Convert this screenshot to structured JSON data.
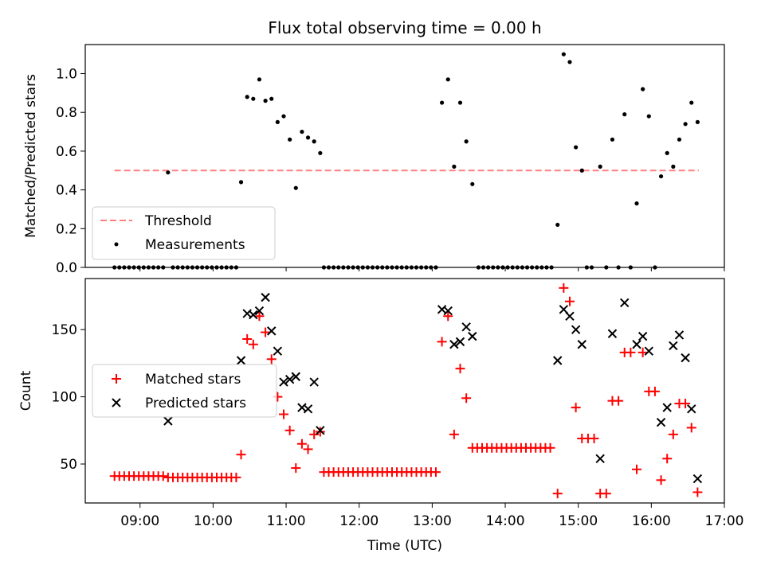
{
  "title": "Flux total observing time = 0.00 h",
  "chart_data": [
    {
      "type": "scatter",
      "ylabel": "Matched/Predicted stars",
      "xlim": [
        "08:15",
        "17:00"
      ],
      "ylim": [
        0,
        1.15
      ],
      "yticks": [
        0.0,
        0.2,
        0.4,
        0.6,
        0.8,
        1.0
      ],
      "ytick_labels": [
        "0.0",
        "0.2",
        "0.4",
        "0.6",
        "0.8",
        "1.0"
      ],
      "legend_position": "lower-left",
      "threshold": {
        "name": "Threshold",
        "value": 0.5,
        "x_range": [
          "08:39",
          "16:39"
        ],
        "color": "#ff7f7f",
        "style": "dashed"
      },
      "series": [
        {
          "name": "Measurements",
          "marker": "dot",
          "color": "#000000",
          "points": [
            [
              "08:39",
              0
            ],
            [
              "08:43",
              0
            ],
            [
              "08:47",
              0
            ],
            [
              "08:51",
              0
            ],
            [
              "08:55",
              0
            ],
            [
              "08:59",
              0
            ],
            [
              "09:03",
              0
            ],
            [
              "09:07",
              0
            ],
            [
              "09:11",
              0
            ],
            [
              "09:15",
              0
            ],
            [
              "09:19",
              0
            ],
            [
              "09:23",
              0.49
            ],
            [
              "09:27",
              0
            ],
            [
              "09:31",
              0
            ],
            [
              "09:35",
              0
            ],
            [
              "09:39",
              0
            ],
            [
              "09:43",
              0
            ],
            [
              "09:47",
              0
            ],
            [
              "09:51",
              0
            ],
            [
              "09:55",
              0
            ],
            [
              "09:59",
              0
            ],
            [
              "10:03",
              0
            ],
            [
              "10:07",
              0
            ],
            [
              "10:11",
              0
            ],
            [
              "10:15",
              0
            ],
            [
              "10:19",
              0
            ],
            [
              "10:23",
              0.44
            ],
            [
              "10:28",
              0.88
            ],
            [
              "10:33",
              0.87
            ],
            [
              "10:38",
              0.97
            ],
            [
              "10:43",
              0.86
            ],
            [
              "10:48",
              0.87
            ],
            [
              "10:53",
              0.75
            ],
            [
              "10:58",
              0.78
            ],
            [
              "11:03",
              0.66
            ],
            [
              "11:08",
              0.41
            ],
            [
              "11:13",
              0.7
            ],
            [
              "11:18",
              0.67
            ],
            [
              "11:23",
              0.65
            ],
            [
              "11:28",
              0.59
            ],
            [
              "11:31",
              0
            ],
            [
              "11:35",
              0
            ],
            [
              "11:39",
              0
            ],
            [
              "11:43",
              0
            ],
            [
              "11:47",
              0
            ],
            [
              "11:51",
              0
            ],
            [
              "11:55",
              0
            ],
            [
              "11:59",
              0
            ],
            [
              "12:03",
              0
            ],
            [
              "12:07",
              0
            ],
            [
              "12:11",
              0
            ],
            [
              "12:15",
              0
            ],
            [
              "12:19",
              0
            ],
            [
              "12:23",
              0
            ],
            [
              "12:27",
              0
            ],
            [
              "12:31",
              0
            ],
            [
              "12:35",
              0
            ],
            [
              "12:39",
              0
            ],
            [
              "12:43",
              0
            ],
            [
              "12:47",
              0
            ],
            [
              "12:51",
              0
            ],
            [
              "12:55",
              0
            ],
            [
              "12:59",
              0
            ],
            [
              "13:03",
              0
            ],
            [
              "13:08",
              0.85
            ],
            [
              "13:13",
              0.97
            ],
            [
              "13:18",
              0.52
            ],
            [
              "13:23",
              0.85
            ],
            [
              "13:28",
              0.65
            ],
            [
              "13:33",
              0.43
            ],
            [
              "13:38",
              0
            ],
            [
              "13:42",
              0
            ],
            [
              "13:46",
              0
            ],
            [
              "13:50",
              0
            ],
            [
              "13:54",
              0
            ],
            [
              "13:58",
              0
            ],
            [
              "14:02",
              0
            ],
            [
              "14:06",
              0
            ],
            [
              "14:10",
              0
            ],
            [
              "14:14",
              0
            ],
            [
              "14:18",
              0
            ],
            [
              "14:22",
              0
            ],
            [
              "14:26",
              0
            ],
            [
              "14:30",
              0
            ],
            [
              "14:34",
              0
            ],
            [
              "14:38",
              0
            ],
            [
              "14:43",
              0.22
            ],
            [
              "14:48",
              1.1
            ],
            [
              "14:53",
              1.06
            ],
            [
              "14:58",
              0.62
            ],
            [
              "15:03",
              0.5
            ],
            [
              "15:07",
              0
            ],
            [
              "15:11",
              0
            ],
            [
              "15:18",
              0.52
            ],
            [
              "15:23",
              0
            ],
            [
              "15:28",
              0.66
            ],
            [
              "15:33",
              0
            ],
            [
              "15:38",
              0.79
            ],
            [
              "15:43",
              0
            ],
            [
              "15:48",
              0.33
            ],
            [
              "15:53",
              0.92
            ],
            [
              "15:58",
              0.78
            ],
            [
              "16:03",
              0
            ],
            [
              "16:08",
              0.47
            ],
            [
              "16:13",
              0.59
            ],
            [
              "16:18",
              0.52
            ],
            [
              "16:23",
              0.66
            ],
            [
              "16:28",
              0.74
            ],
            [
              "16:33",
              0.85
            ],
            [
              "16:38",
              0.75
            ]
          ]
        }
      ]
    },
    {
      "type": "scatter",
      "xlabel": "Time (UTC)",
      "ylabel": "Count",
      "xlim": [
        "08:15",
        "17:00"
      ],
      "ylim": [
        21,
        188
      ],
      "yticks": [
        50,
        100,
        150
      ],
      "ytick_labels": [
        "50",
        "100",
        "150"
      ],
      "xticks": [
        "09:00",
        "10:00",
        "11:00",
        "12:00",
        "13:00",
        "14:00",
        "15:00",
        "16:00",
        "17:00"
      ],
      "legend_position": "center-left",
      "series": [
        {
          "name": "Matched stars",
          "marker": "plus",
          "color": "#ff0000",
          "points": [
            [
              "08:39",
              41
            ],
            [
              "08:43",
              41
            ],
            [
              "08:47",
              41
            ],
            [
              "08:51",
              41
            ],
            [
              "08:55",
              41
            ],
            [
              "08:59",
              41
            ],
            [
              "09:03",
              41
            ],
            [
              "09:07",
              41
            ],
            [
              "09:11",
              41
            ],
            [
              "09:15",
              41
            ],
            [
              "09:19",
              41
            ],
            [
              "09:23",
              40
            ],
            [
              "09:27",
              40
            ],
            [
              "09:31",
              40
            ],
            [
              "09:35",
              40
            ],
            [
              "09:39",
              40
            ],
            [
              "09:43",
              40
            ],
            [
              "09:47",
              40
            ],
            [
              "09:51",
              40
            ],
            [
              "09:55",
              40
            ],
            [
              "09:59",
              40
            ],
            [
              "10:03",
              40
            ],
            [
              "10:07",
              40
            ],
            [
              "10:11",
              40
            ],
            [
              "10:15",
              40
            ],
            [
              "10:19",
              40
            ],
            [
              "10:23",
              57
            ],
            [
              "10:28",
              143
            ],
            [
              "10:33",
              139
            ],
            [
              "10:38",
              160
            ],
            [
              "10:43",
              148
            ],
            [
              "10:48",
              128
            ],
            [
              "10:53",
              100
            ],
            [
              "10:58",
              87
            ],
            [
              "11:03",
              75
            ],
            [
              "11:08",
              47
            ],
            [
              "11:13",
              65
            ],
            [
              "11:18",
              61
            ],
            [
              "11:23",
              72
            ],
            [
              "11:28",
              74
            ],
            [
              "11:31",
              44
            ],
            [
              "11:35",
              44
            ],
            [
              "11:39",
              44
            ],
            [
              "11:43",
              44
            ],
            [
              "11:47",
              44
            ],
            [
              "11:51",
              44
            ],
            [
              "11:55",
              44
            ],
            [
              "11:59",
              44
            ],
            [
              "12:03",
              44
            ],
            [
              "12:07",
              44
            ],
            [
              "12:11",
              44
            ],
            [
              "12:15",
              44
            ],
            [
              "12:19",
              44
            ],
            [
              "12:23",
              44
            ],
            [
              "12:27",
              44
            ],
            [
              "12:31",
              44
            ],
            [
              "12:35",
              44
            ],
            [
              "12:39",
              44
            ],
            [
              "12:43",
              44
            ],
            [
              "12:47",
              44
            ],
            [
              "12:51",
              44
            ],
            [
              "12:55",
              44
            ],
            [
              "12:59",
              44
            ],
            [
              "13:03",
              44
            ],
            [
              "13:08",
              141
            ],
            [
              "13:13",
              160
            ],
            [
              "13:18",
              72
            ],
            [
              "13:23",
              121
            ],
            [
              "13:28",
              99
            ],
            [
              "13:33",
              62
            ],
            [
              "13:37",
              62
            ],
            [
              "13:41",
              62
            ],
            [
              "13:45",
              62
            ],
            [
              "13:49",
              62
            ],
            [
              "13:53",
              62
            ],
            [
              "13:57",
              62
            ],
            [
              "14:01",
              62
            ],
            [
              "14:05",
              62
            ],
            [
              "14:09",
              62
            ],
            [
              "14:13",
              62
            ],
            [
              "14:17",
              62
            ],
            [
              "14:21",
              62
            ],
            [
              "14:25",
              62
            ],
            [
              "14:29",
              62
            ],
            [
              "14:33",
              62
            ],
            [
              "14:37",
              62
            ],
            [
              "14:43",
              28
            ],
            [
              "14:48",
              181
            ],
            [
              "14:53",
              171
            ],
            [
              "14:58",
              92
            ],
            [
              "15:03",
              69
            ],
            [
              "15:08",
              69
            ],
            [
              "15:13",
              69
            ],
            [
              "15:18",
              28
            ],
            [
              "15:23",
              28
            ],
            [
              "15:28",
              97
            ],
            [
              "15:33",
              97
            ],
            [
              "15:38",
              133
            ],
            [
              "15:43",
              133
            ],
            [
              "15:48",
              46
            ],
            [
              "15:53",
              133
            ],
            [
              "15:58",
              104
            ],
            [
              "16:03",
              104
            ],
            [
              "16:08",
              38
            ],
            [
              "16:13",
              54
            ],
            [
              "16:18",
              72
            ],
            [
              "16:23",
              95
            ],
            [
              "16:28",
              95
            ],
            [
              "16:33",
              77
            ],
            [
              "16:38",
              29
            ]
          ]
        },
        {
          "name": "Predicted stars",
          "marker": "x",
          "color": "#000000",
          "points": [
            [
              "09:23",
              82
            ],
            [
              "10:23",
              127
            ],
            [
              "10:28",
              162
            ],
            [
              "10:33",
              161
            ],
            [
              "10:38",
              164
            ],
            [
              "10:43",
              174
            ],
            [
              "10:48",
              149
            ],
            [
              "10:53",
              134
            ],
            [
              "10:58",
              111
            ],
            [
              "11:03",
              113
            ],
            [
              "11:08",
              115
            ],
            [
              "11:13",
              92
            ],
            [
              "11:18",
              91
            ],
            [
              "11:23",
              111
            ],
            [
              "11:28",
              75
            ],
            [
              "13:08",
              165
            ],
            [
              "13:13",
              164
            ],
            [
              "13:18",
              139
            ],
            [
              "13:23",
              141
            ],
            [
              "13:28",
              152
            ],
            [
              "13:33",
              145
            ],
            [
              "14:43",
              127
            ],
            [
              "14:48",
              165
            ],
            [
              "14:53",
              160
            ],
            [
              "14:58",
              150
            ],
            [
              "15:03",
              139
            ],
            [
              "15:18",
              54
            ],
            [
              "15:28",
              147
            ],
            [
              "15:38",
              170
            ],
            [
              "15:48",
              139
            ],
            [
              "15:53",
              145
            ],
            [
              "15:58",
              134
            ],
            [
              "16:08",
              81
            ],
            [
              "16:13",
              92
            ],
            [
              "16:18",
              138
            ],
            [
              "16:23",
              146
            ],
            [
              "16:28",
              129
            ],
            [
              "16:33",
              91
            ],
            [
              "16:38",
              39
            ]
          ]
        }
      ]
    }
  ]
}
